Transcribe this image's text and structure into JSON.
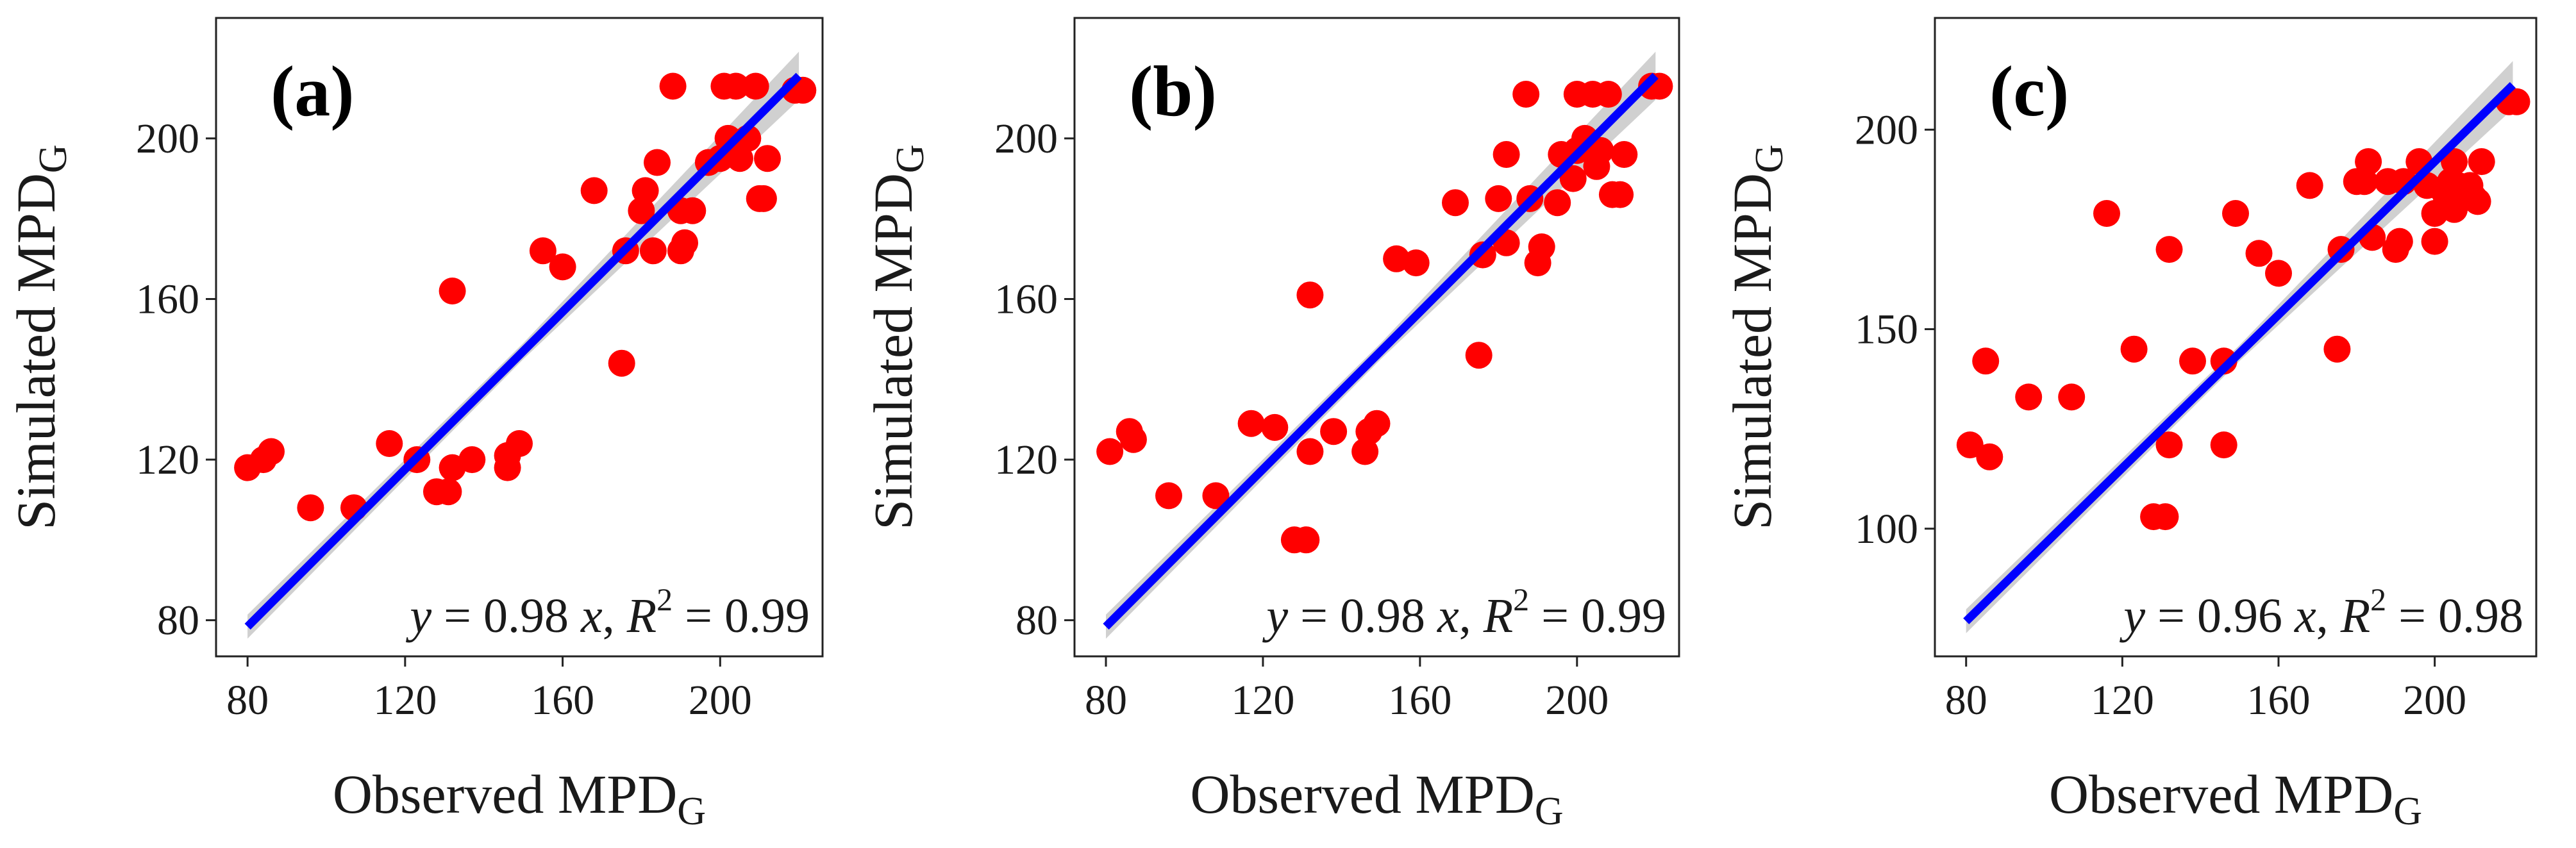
{
  "chart_data": [
    {
      "type": "scatter",
      "panel_label": "(a)",
      "xlabel": "Observed MPD",
      "xlabel_sub": "G",
      "ylabel": "Simulated MPD",
      "ylabel_sub": "G",
      "xlim": [
        72,
        226
      ],
      "ylim": [
        71,
        230
      ],
      "xticks": [
        80,
        120,
        160,
        200
      ],
      "yticks": [
        80,
        120,
        160,
        200
      ],
      "equation": {
        "lhs": "y",
        "eq1": " = 0.98 ",
        "x": "x",
        "sep": ", ",
        "r": "R",
        "sup": "2",
        "eq2": " = 0.99"
      },
      "fit": {
        "slope": 0.98,
        "x_range": [
          80,
          220
        ],
        "ci_start": 3,
        "ci_end": 6
      },
      "points": [
        [
          80,
          118
        ],
        [
          84,
          120
        ],
        [
          86,
          122
        ],
        [
          96,
          108
        ],
        [
          107,
          108
        ],
        [
          116,
          124
        ],
        [
          123,
          120
        ],
        [
          128,
          112
        ],
        [
          131,
          112
        ],
        [
          132,
          118
        ],
        [
          132,
          162
        ],
        [
          137,
          120
        ],
        [
          146,
          118
        ],
        [
          146,
          121
        ],
        [
          149,
          124
        ],
        [
          155,
          172
        ],
        [
          160,
          168
        ],
        [
          168,
          187
        ],
        [
          175,
          144
        ],
        [
          176,
          172
        ],
        [
          180,
          182
        ],
        [
          181,
          187
        ],
        [
          183,
          172
        ],
        [
          184,
          194
        ],
        [
          188,
          213
        ],
        [
          190,
          172
        ],
        [
          190,
          182
        ],
        [
          191,
          174
        ],
        [
          193,
          182
        ],
        [
          197,
          194
        ],
        [
          200,
          195
        ],
        [
          201,
          213
        ],
        [
          202,
          200
        ],
        [
          204,
          213
        ],
        [
          205,
          195
        ],
        [
          207,
          200
        ],
        [
          209,
          213
        ],
        [
          210,
          185
        ],
        [
          211,
          185
        ],
        [
          212,
          195
        ],
        [
          219,
          212
        ],
        [
          221,
          212
        ]
      ]
    },
    {
      "type": "scatter",
      "panel_label": "(b)",
      "xlabel": "Observed MPD",
      "xlabel_sub": "G",
      "ylabel": "Simulated MPD",
      "ylabel_sub": "G",
      "xlim": [
        72,
        226
      ],
      "ylim": [
        71,
        230
      ],
      "xticks": [
        80,
        120,
        160,
        200
      ],
      "yticks": [
        80,
        120,
        160,
        200
      ],
      "equation": {
        "lhs": "y",
        "eq1": " = 0.98 ",
        "x": "x",
        "sep": ", ",
        "r": "R",
        "sup": "2",
        "eq2": " = 0.99"
      },
      "fit": {
        "slope": 0.98,
        "x_range": [
          80,
          220
        ],
        "ci_start": 3,
        "ci_end": 6
      },
      "points": [
        [
          81,
          122
        ],
        [
          86,
          127
        ],
        [
          87,
          125
        ],
        [
          96,
          111
        ],
        [
          108,
          111
        ],
        [
          117,
          129
        ],
        [
          123,
          128
        ],
        [
          128,
          100
        ],
        [
          131,
          100
        ],
        [
          132,
          161
        ],
        [
          132,
          122
        ],
        [
          138,
          127
        ],
        [
          146,
          122
        ],
        [
          147,
          127
        ],
        [
          149,
          129
        ],
        [
          154,
          170
        ],
        [
          159,
          169
        ],
        [
          169,
          184
        ],
        [
          175,
          146
        ],
        [
          176,
          171
        ],
        [
          180,
          185
        ],
        [
          182,
          174
        ],
        [
          182,
          196
        ],
        [
          187,
          211
        ],
        [
          188,
          185
        ],
        [
          190,
          169
        ],
        [
          191,
          173
        ],
        [
          195,
          184
        ],
        [
          196,
          196
        ],
        [
          199,
          190
        ],
        [
          200,
          197
        ],
        [
          200,
          211
        ],
        [
          202,
          200
        ],
        [
          204,
          211
        ],
        [
          205,
          193
        ],
        [
          206,
          197
        ],
        [
          208,
          211
        ],
        [
          209,
          186
        ],
        [
          211,
          186
        ],
        [
          212,
          196
        ],
        [
          219,
          213
        ],
        [
          221,
          213
        ]
      ]
    },
    {
      "type": "scatter",
      "panel_label": "(c)",
      "xlabel": "Observed MPD",
      "xlabel_sub": "G",
      "ylabel": "Simulated MPD",
      "ylabel_sub": "G",
      "xlim": [
        72,
        226
      ],
      "ylim": [
        68,
        228
      ],
      "xticks": [
        80,
        120,
        160,
        200
      ],
      "yticks": [
        100,
        150,
        200
      ],
      "equation": {
        "lhs": "y",
        "eq1": " = 0.96 ",
        "x": "x",
        "sep": ", ",
        "r": "R",
        "sup": "2",
        "eq2": " = 0.98"
      },
      "fit": {
        "slope": 0.96,
        "x_range": [
          80,
          220
        ],
        "ci_start": 3,
        "ci_end": 6
      },
      "points": [
        [
          81,
          121
        ],
        [
          85,
          142
        ],
        [
          86,
          118
        ],
        [
          96,
          133
        ],
        [
          107,
          133
        ],
        [
          116,
          179
        ],
        [
          123,
          145
        ],
        [
          128,
          103
        ],
        [
          131,
          103
        ],
        [
          132,
          121
        ],
        [
          132,
          170
        ],
        [
          138,
          142
        ],
        [
          146,
          121
        ],
        [
          146,
          142
        ],
        [
          149,
          179
        ],
        [
          155,
          169
        ],
        [
          160,
          164
        ],
        [
          168,
          186
        ],
        [
          175,
          145
        ],
        [
          176,
          170
        ],
        [
          180,
          187
        ],
        [
          182,
          187
        ],
        [
          183,
          192
        ],
        [
          184,
          173
        ],
        [
          188,
          187
        ],
        [
          190,
          170
        ],
        [
          191,
          172
        ],
        [
          192,
          187
        ],
        [
          196,
          192
        ],
        [
          198,
          186
        ],
        [
          200,
          172
        ],
        [
          200,
          179
        ],
        [
          202,
          185
        ],
        [
          203,
          182
        ],
        [
          204,
          187
        ],
        [
          204,
          183
        ],
        [
          205,
          180
        ],
        [
          205,
          192
        ],
        [
          206,
          186
        ],
        [
          207,
          185
        ],
        [
          208,
          183
        ],
        [
          209,
          186
        ],
        [
          210,
          183
        ],
        [
          211,
          182
        ],
        [
          212,
          192
        ],
        [
          219,
          207
        ],
        [
          221,
          207
        ]
      ]
    }
  ]
}
